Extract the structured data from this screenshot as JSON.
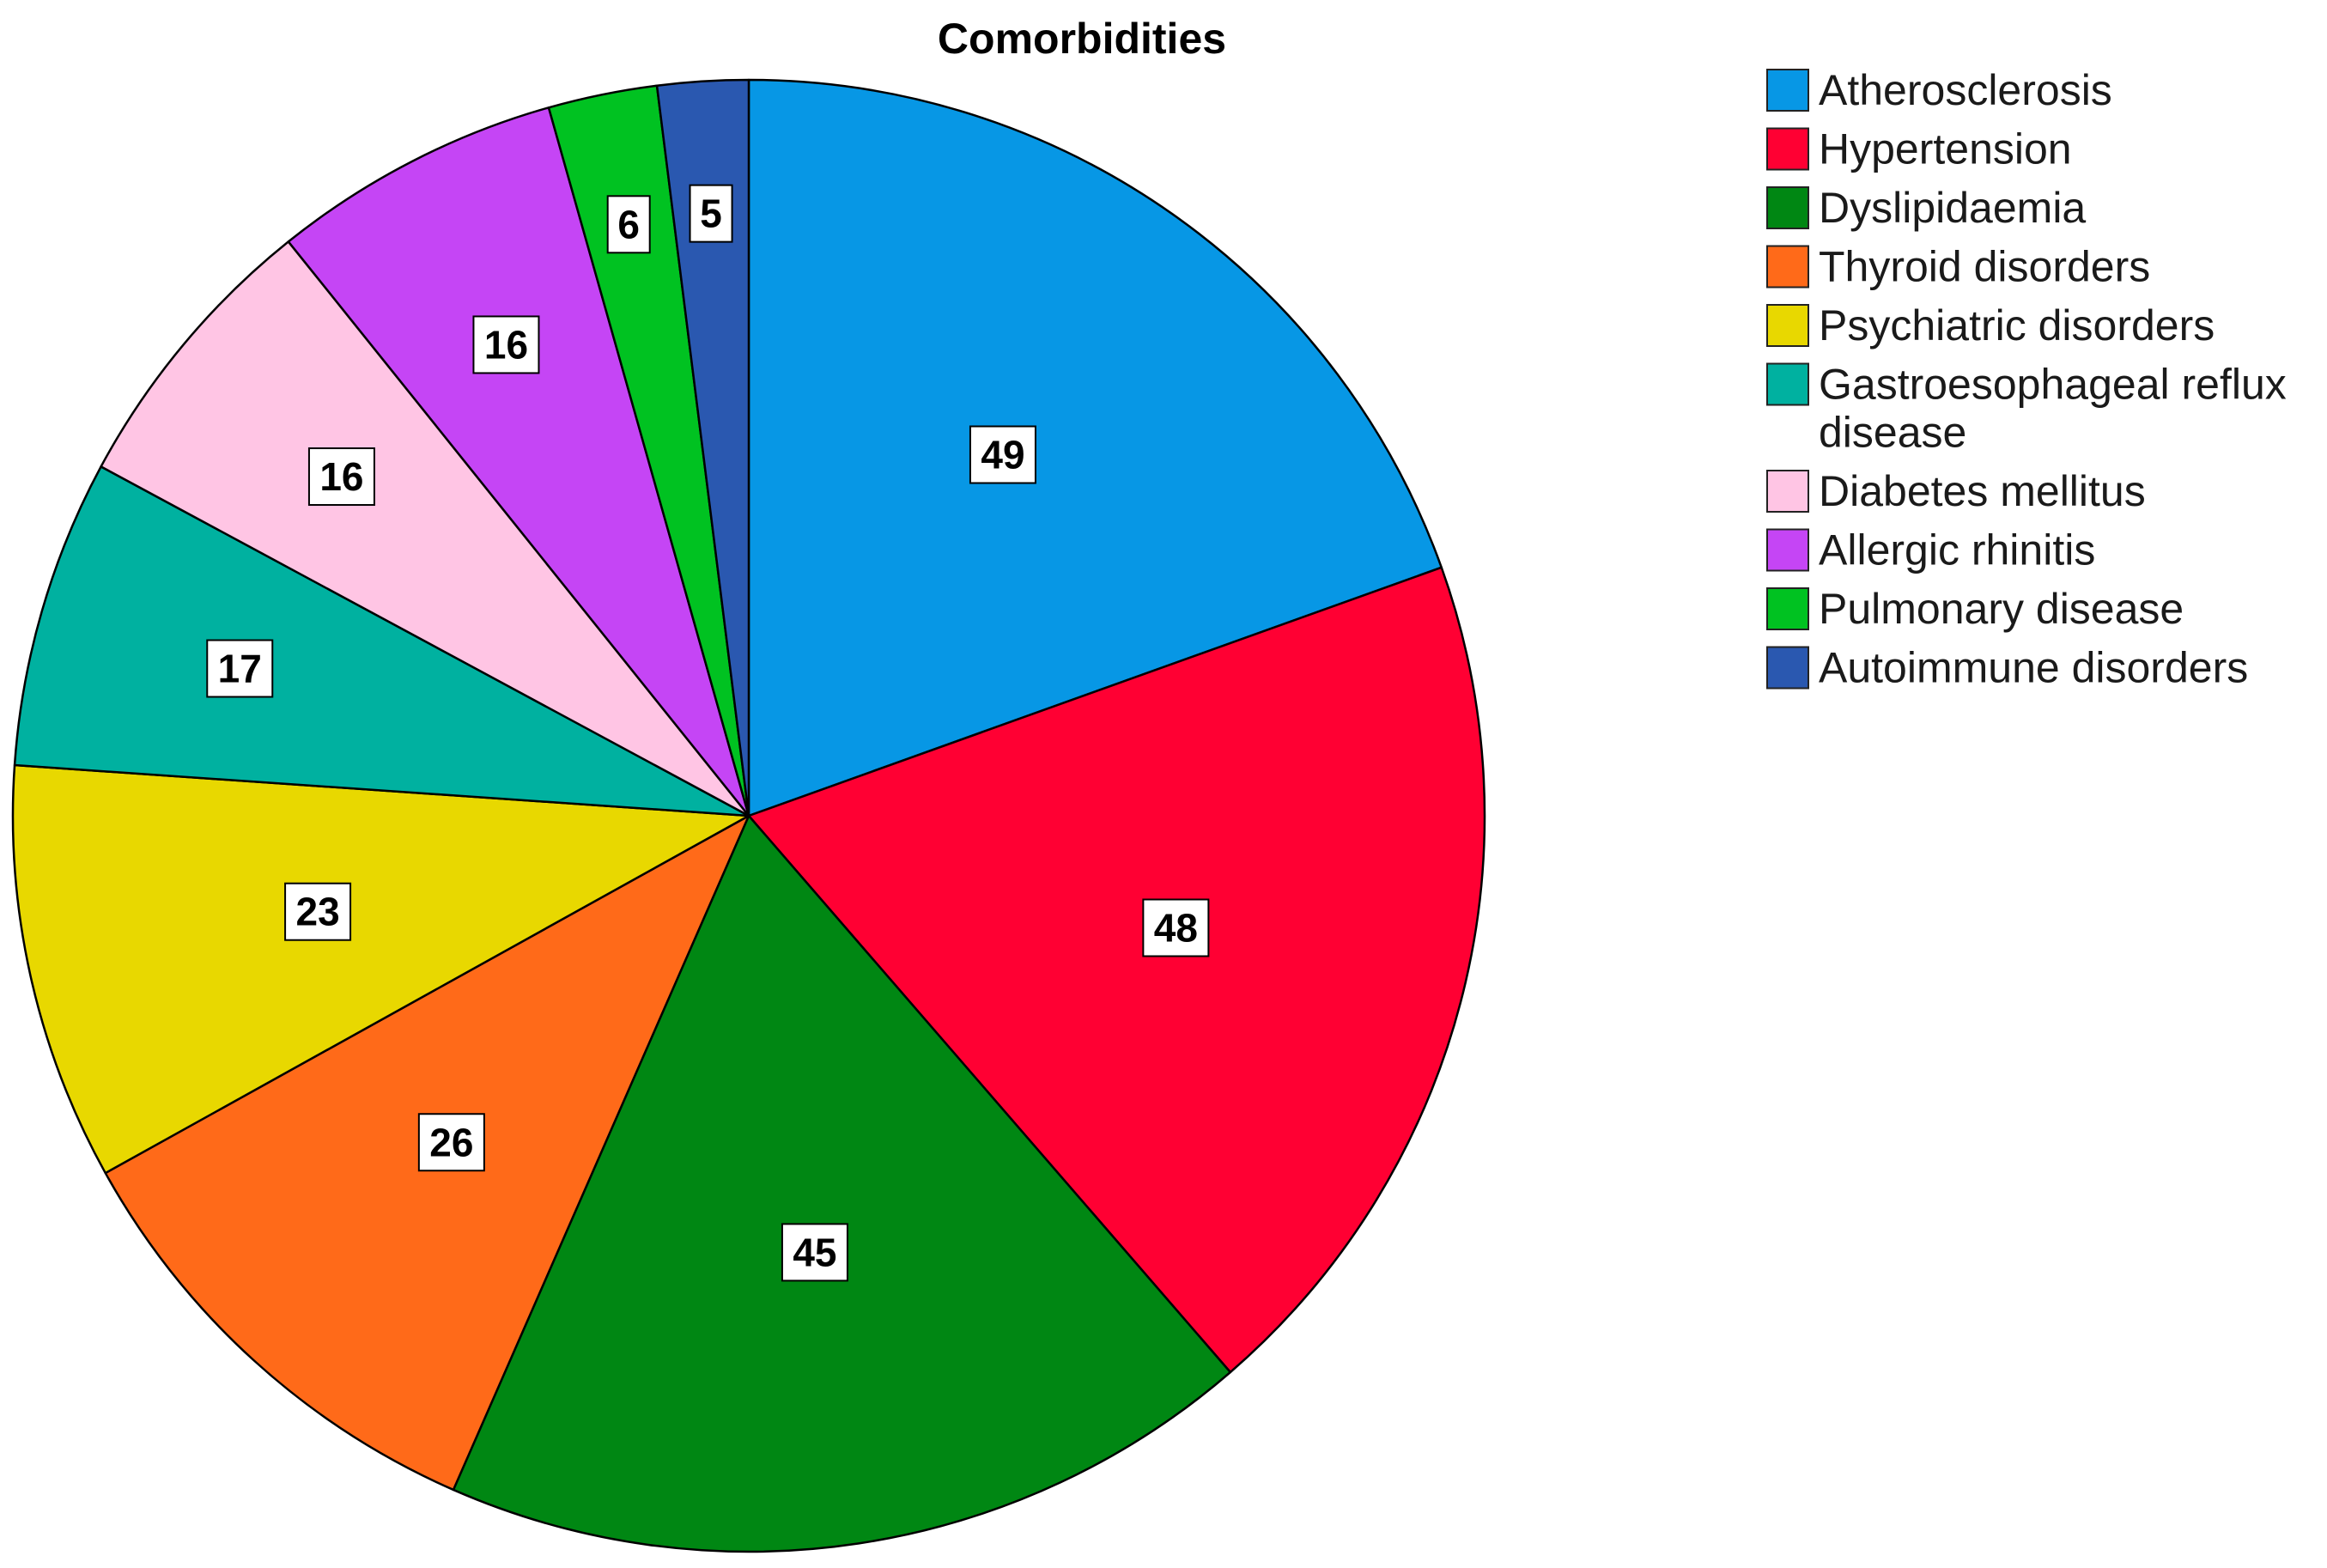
{
  "chart_data": {
    "type": "pie",
    "title": "Comorbidities",
    "categories": [
      "Atherosclerosis",
      "Hypertension",
      "Dyslipidaemia",
      "Thyroid disorders",
      "Psychiatric disorders",
      "Gastroesophageal reflux disease",
      "Diabetes mellitus",
      "Allergic rhinitis",
      "Pulmonary disease",
      "Autoimmune disorders"
    ],
    "legend_lines": [
      [
        "Atherosclerosis"
      ],
      [
        "Hypertension"
      ],
      [
        "Dyslipidaemia"
      ],
      [
        "Thyroid disorders"
      ],
      [
        "Psychiatric disorders"
      ],
      [
        "Gastroesophageal reflux",
        "disease"
      ],
      [
        "Diabetes mellitus"
      ],
      [
        "Allergic rhinitis"
      ],
      [
        "Pulmonary disease"
      ],
      [
        "Autoimmune disorders"
      ]
    ],
    "values": [
      49,
      48,
      45,
      26,
      23,
      17,
      16,
      16,
      6,
      5
    ],
    "colors": [
      "#0797e5",
      "#ff0033",
      "#008713",
      "#ff6a19",
      "#e8d800",
      "#00b1a0",
      "#ffc5e4",
      "#c545f5",
      "#00c221",
      "#2a58b0"
    ],
    "start": "12 o'clock, clockwise",
    "legend_position": "right",
    "data_labels": "values"
  }
}
